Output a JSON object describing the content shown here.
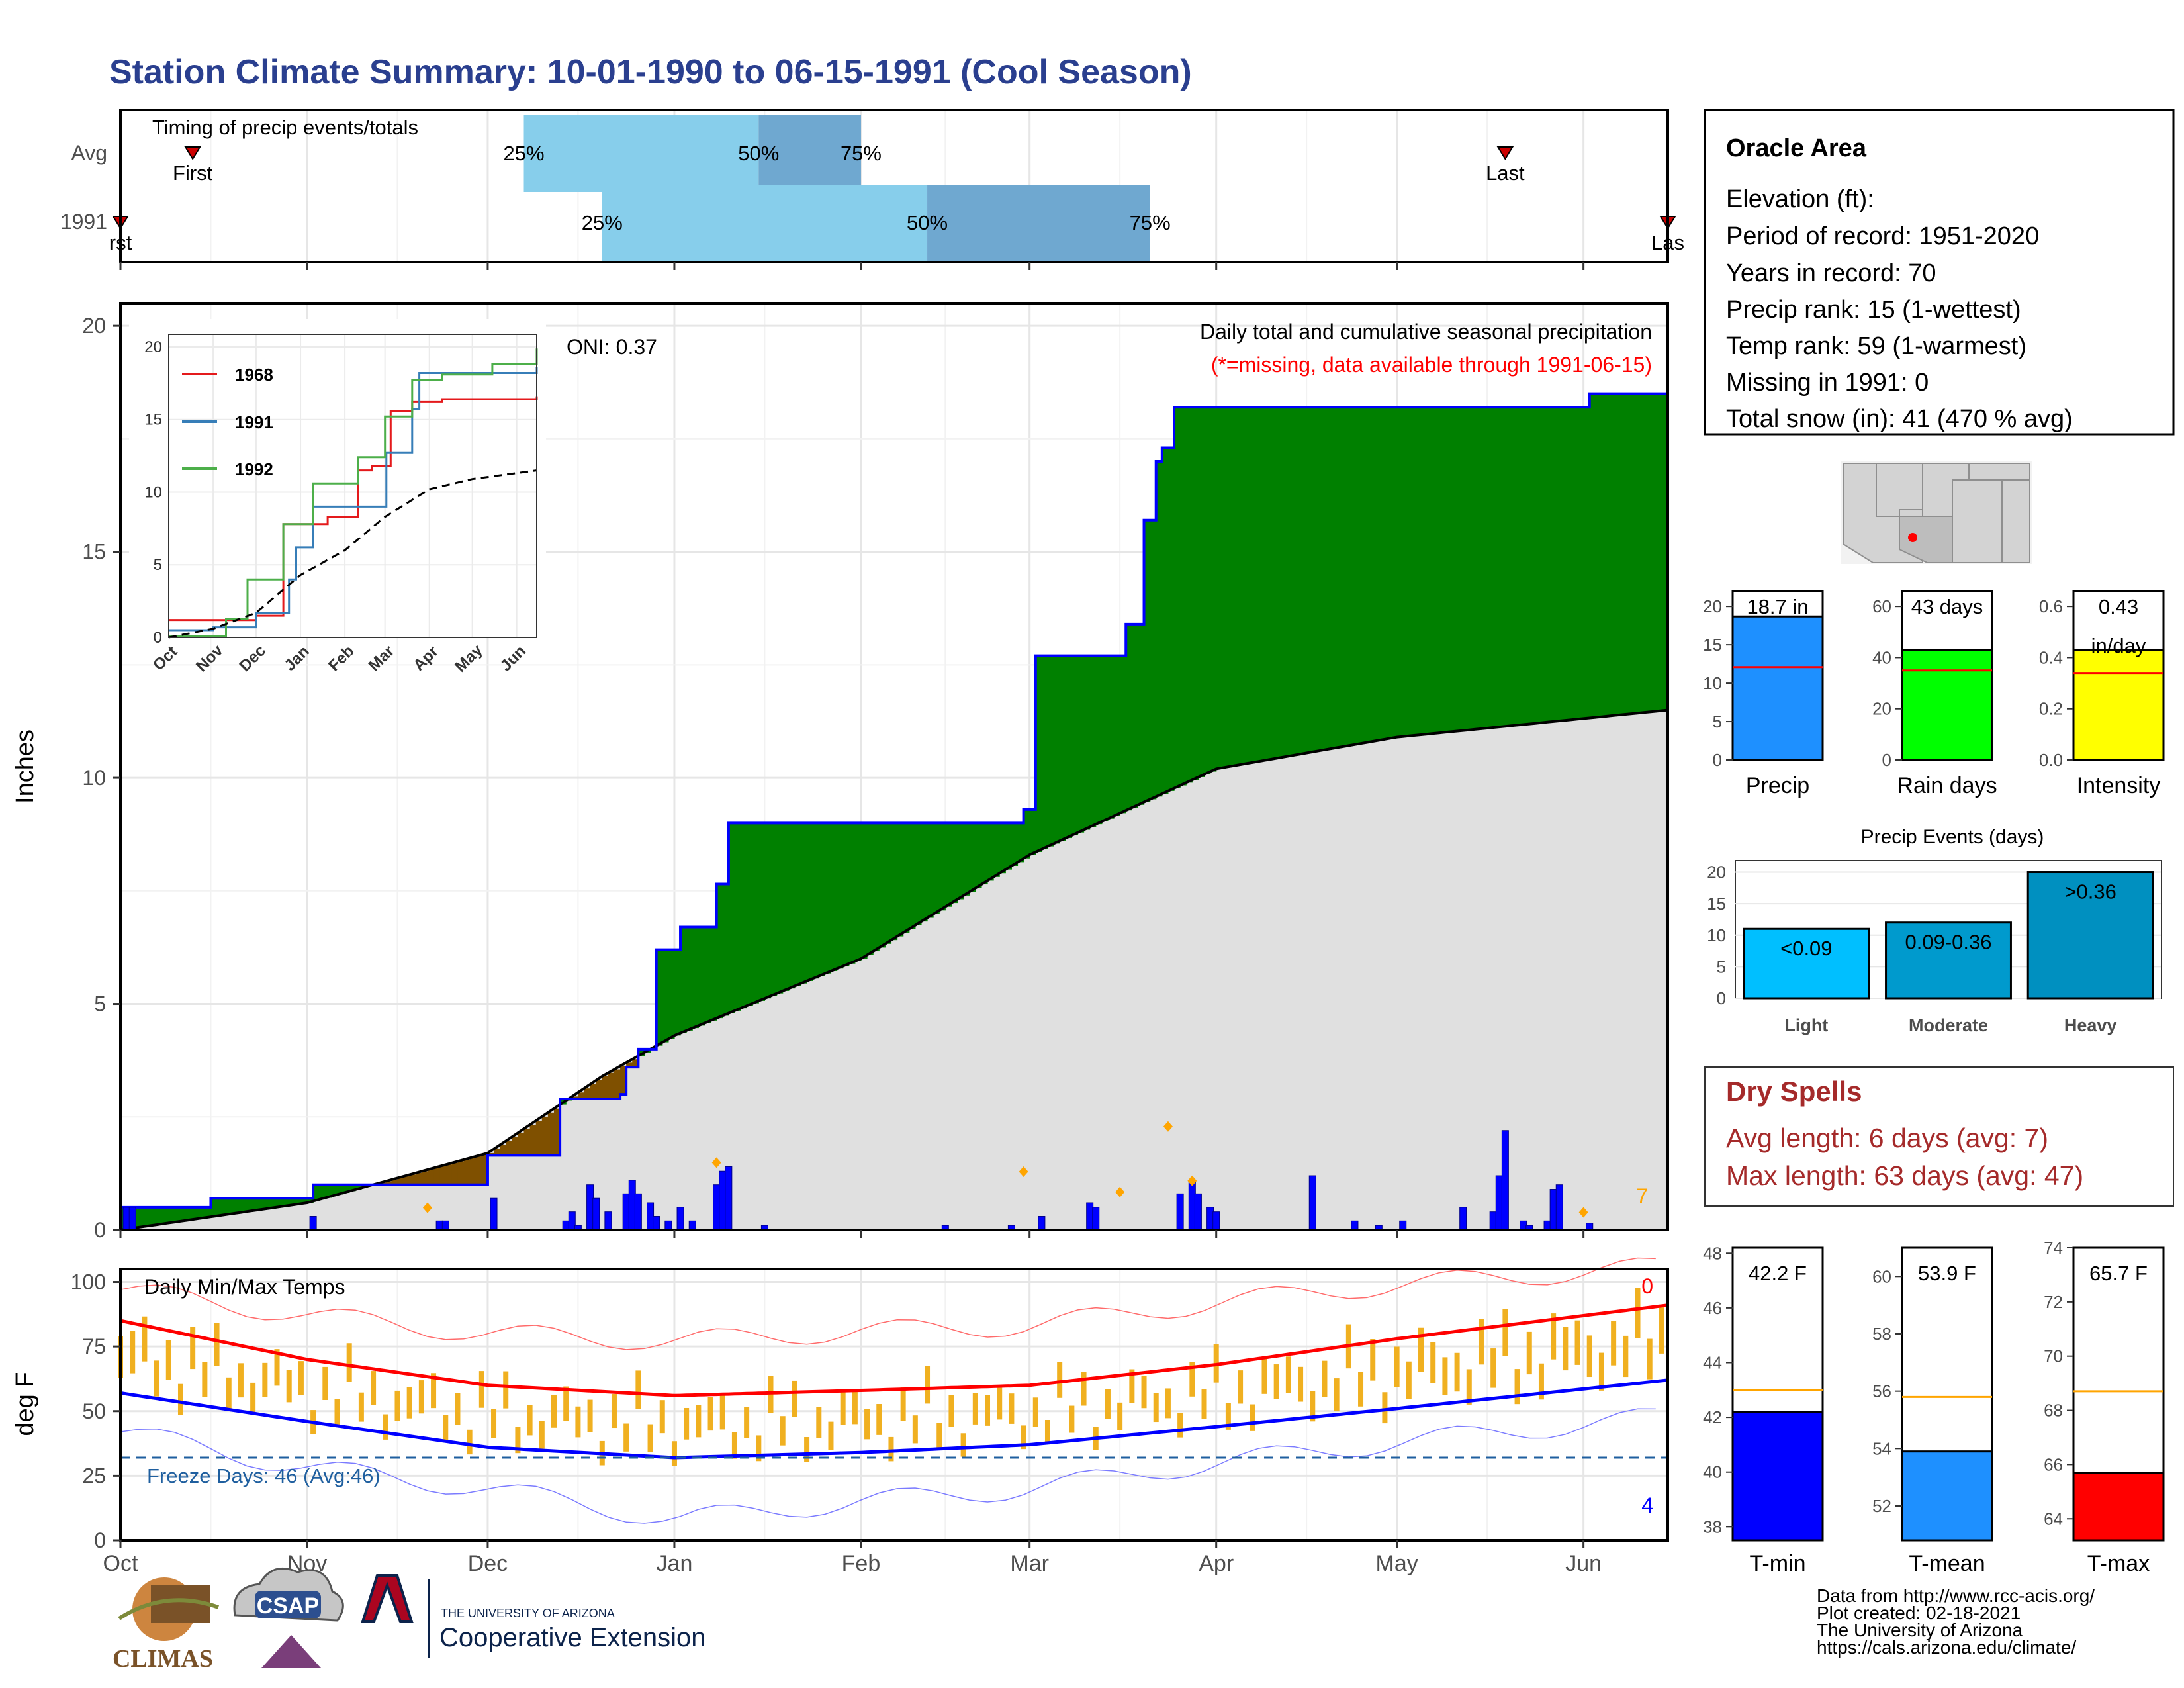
{
  "page_title": "Station Climate Summary: 10-01-1990 to 06-15-1991 (Cool Season)",
  "colors": {
    "title": "#2a3f8f",
    "wet_fill": "#008000",
    "dry_fill": "#7f5000",
    "avg_fill": "#e0e0e0",
    "cum_line": "#0000ff",
    "bar_light": "#87ceeb",
    "bar_dark": "#6fa8d0",
    "temp_bar": "#f0b020",
    "tmax_line": "#ff0000",
    "tmin_line": "#0000ff",
    "freeze_line": "#1f5f9f",
    "marker_orange": "#ffa500",
    "dry_spell_text": "#a52a2a"
  },
  "timing": {
    "title": "Timing of precip events/totals",
    "rows": [
      {
        "label": "Avg",
        "first": "1990-10-13",
        "last": "1991-05-19",
        "p25": "1990-12-07",
        "p50": "1991-01-15",
        "p75": "1991-02-01",
        "first_label": "First",
        "last_label": "Last",
        "p25_label": "25%",
        "p50_label": "50%",
        "p75_label": "75%"
      },
      {
        "label": "1991",
        "first": "1990-10-01",
        "last": "1991-06-15",
        "p25": "1990-12-20",
        "p50": "1991-02-12",
        "p75": "1991-03-21",
        "first_label": "rst",
        "last_label": "Las",
        "p25_label": "25%",
        "p50_label": "50%",
        "p75_label": "75%"
      }
    ]
  },
  "precip": {
    "y_label": "Inches",
    "y_ticks": [
      "0",
      "5",
      "10",
      "15",
      "20"
    ],
    "oni": "ONI: 0.37",
    "title": "Daily total and cumulative seasonal precipitation",
    "subtitle": "(*=missing, data available through 1991-06-15)",
    "corner_count": "7"
  },
  "inset": {
    "y_ticks": [
      "0",
      "5",
      "10",
      "15",
      "20"
    ],
    "x_ticks": [
      "Oct",
      "Nov",
      "Dec",
      "Jan",
      "Feb",
      "Mar",
      "Apr",
      "May",
      "Jun"
    ],
    "legend": [
      {
        "label": "1968",
        "color": "#e41a1c"
      },
      {
        "label": "1991",
        "color": "#377eb8"
      },
      {
        "label": "1992",
        "color": "#4daf4a"
      }
    ]
  },
  "temps": {
    "title": "Daily Min/Max Temps",
    "y_label": "deg F",
    "y_ticks": [
      "0",
      "25",
      "50",
      "75",
      "100"
    ],
    "freeze_label": "Freeze Days: 46 (Avg:46)",
    "top_count": "0",
    "bottom_count": "4"
  },
  "x_axis": {
    "ticks": [
      "Oct",
      "Nov",
      "Dec",
      "Jan",
      "Feb",
      "Mar",
      "Apr",
      "May",
      "Jun"
    ]
  },
  "station": {
    "name": "Oracle Area",
    "lines": [
      "Elevation (ft):",
      "Period of record: 1951-2020",
      "Years in record: 70",
      "Precip rank: 15 (1-wettest)",
      "Temp rank: 59 (1-warmest)",
      "Missing in 1991: 0",
      "Total snow (in): 41 (470 % avg)"
    ]
  },
  "mini_bars": [
    {
      "name": "Precip",
      "value_label": "18.7 in",
      "ticks": [
        "0",
        "5",
        "10",
        "15",
        "20"
      ]
    },
    {
      "name": "Rain days",
      "value_label": "43 days",
      "ticks": [
        "0",
        "20",
        "40",
        "60"
      ]
    },
    {
      "name": "Intensity",
      "value_label": "0.43",
      "value_unit": "in/day",
      "ticks": [
        "0.0",
        "0.2",
        "0.4",
        "0.6"
      ]
    }
  ],
  "precip_events": {
    "title": "Precip Events (days)",
    "ticks": [
      "0",
      "5",
      "10",
      "15",
      "20"
    ],
    "bars": [
      {
        "category": "Light",
        "label": "<0.09"
      },
      {
        "category": "Moderate",
        "label": "0.09-0.36"
      },
      {
        "category": "Heavy",
        "label": ">0.36"
      }
    ]
  },
  "dry_spells": {
    "title": "Dry Spells",
    "avg_length": "Avg length: 6 days (avg: 7)",
    "max_length": "Max length: 63 days (avg: 47)"
  },
  "temp_summary": [
    {
      "name": "T-min",
      "label": "42.2 F",
      "ticks": [
        "38",
        "40",
        "42",
        "44",
        "46",
        "48"
      ]
    },
    {
      "name": "T-mean",
      "label": "53.9 F",
      "ticks": [
        "52",
        "54",
        "56",
        "58",
        "60"
      ]
    },
    {
      "name": "T-max",
      "label": "65.7 F",
      "ticks": [
        "64",
        "66",
        "68",
        "70",
        "72",
        "74"
      ]
    }
  ],
  "footer": {
    "lines": [
      "Data from http://www.rcc-acis.org/",
      "Plot created: 02-18-2021",
      "The University of Arizona",
      "https://cals.arizona.edu/climate/"
    ],
    "climas": "CLIMAS",
    "csap": "CSAP",
    "ua_small": "THE UNIVERSITY OF ARIZONA",
    "ua_big": "Cooperative Extension"
  },
  "chart_data": [
    {
      "type": "area",
      "title": "Daily total and cumulative seasonal precipitation",
      "ylabel": "Inches",
      "ylim": [
        0,
        20.5
      ],
      "cumulative_1991": [
        [
          "1990-10-01",
          0.5
        ],
        [
          "1990-10-15",
          0.5
        ],
        [
          "1990-10-16",
          0.7
        ],
        [
          "1990-11-01",
          0.7
        ],
        [
          "1990-11-02",
          1.0
        ],
        [
          "1990-11-30",
          1.0
        ],
        [
          "1990-12-01",
          1.65
        ],
        [
          "1990-12-12",
          1.65
        ],
        [
          "1990-12-13",
          2.9
        ],
        [
          "1990-12-22",
          2.9
        ],
        [
          "1990-12-23",
          3.0
        ],
        [
          "1990-12-24",
          3.6
        ],
        [
          "1990-12-26",
          4.0
        ],
        [
          "1990-12-28",
          4.0
        ],
        [
          "1990-12-29",
          6.2
        ],
        [
          "1991-01-01",
          6.2
        ],
        [
          "1991-01-02",
          6.7
        ],
        [
          "1991-01-07",
          6.7
        ],
        [
          "1991-01-08",
          7.65
        ],
        [
          "1991-01-09",
          7.65
        ],
        [
          "1991-01-10",
          9.0
        ],
        [
          "1991-01-30",
          9.0
        ],
        [
          "1991-02-27",
          9.0
        ],
        [
          "1991-02-28",
          9.3
        ],
        [
          "1991-03-01",
          9.3
        ],
        [
          "1991-03-02",
          12.7
        ],
        [
          "1991-03-16",
          12.7
        ],
        [
          "1991-03-17",
          13.4
        ],
        [
          "1991-03-18",
          13.4
        ],
        [
          "1991-03-20",
          15.7
        ],
        [
          "1991-03-21",
          15.7
        ],
        [
          "1991-03-22",
          17.0
        ],
        [
          "1991-03-23",
          17.3
        ],
        [
          "1991-03-25",
          18.2
        ],
        [
          "1991-06-01",
          18.2
        ],
        [
          "1991-06-02",
          18.5
        ],
        [
          "1991-06-15",
          18.55
        ]
      ],
      "cumulative_avg": [
        [
          "1990-10-01",
          0.0
        ],
        [
          "1990-11-01",
          0.6
        ],
        [
          "1990-12-01",
          1.7
        ],
        [
          "1990-12-20",
          3.4
        ],
        [
          "1991-01-01",
          4.3
        ],
        [
          "1991-02-01",
          6.0
        ],
        [
          "1991-03-01",
          8.3
        ],
        [
          "1991-04-01",
          10.2
        ],
        [
          "1991-05-01",
          10.9
        ],
        [
          "1991-06-15",
          11.5
        ]
      ],
      "daily_bars": [
        [
          "1990-10-02",
          0.5
        ],
        [
          "1990-10-03",
          0.5
        ],
        [
          "1990-11-02",
          0.3
        ],
        [
          "1990-11-23",
          0.2
        ],
        [
          "1990-11-24",
          0.2
        ],
        [
          "1990-12-02",
          0.7
        ],
        [
          "1990-12-14",
          0.2
        ],
        [
          "1990-12-15",
          0.4
        ],
        [
          "1990-12-16",
          0.1
        ],
        [
          "1990-12-18",
          1.0
        ],
        [
          "1990-12-19",
          0.7
        ],
        [
          "1990-12-21",
          0.4
        ],
        [
          "1990-12-24",
          0.8
        ],
        [
          "1990-12-25",
          1.1
        ],
        [
          "1990-12-26",
          0.8
        ],
        [
          "1990-12-28",
          0.6
        ],
        [
          "1990-12-29",
          0.3
        ],
        [
          "1990-12-31",
          0.2
        ],
        [
          "1991-01-02",
          0.5
        ],
        [
          "1991-01-04",
          0.2
        ],
        [
          "1991-01-08",
          1.0
        ],
        [
          "1991-01-09",
          1.3
        ],
        [
          "1991-01-10",
          1.4
        ],
        [
          "1991-01-16",
          0.1
        ],
        [
          "1991-02-15",
          0.1
        ],
        [
          "1991-02-26",
          0.1
        ],
        [
          "1991-03-03",
          0.3
        ],
        [
          "1991-03-11",
          0.6
        ],
        [
          "1991-03-12",
          0.5
        ],
        [
          "1991-03-26",
          0.8
        ],
        [
          "1991-03-28",
          1.1
        ],
        [
          "1991-03-29",
          0.8
        ],
        [
          "1991-03-31",
          0.5
        ],
        [
          "1991-04-01",
          0.4
        ],
        [
          "1991-04-17",
          1.2
        ],
        [
          "1991-04-24",
          0.2
        ],
        [
          "1991-04-28",
          0.1
        ],
        [
          "1991-05-02",
          0.2
        ],
        [
          "1991-05-12",
          0.5
        ],
        [
          "1991-05-17",
          0.4
        ],
        [
          "1991-05-18",
          1.2
        ],
        [
          "1991-05-19",
          2.2
        ],
        [
          "1991-05-22",
          0.2
        ],
        [
          "1991-05-23",
          0.1
        ],
        [
          "1991-05-26",
          0.2
        ],
        [
          "1991-05-27",
          0.9
        ],
        [
          "1991-05-28",
          1.0
        ],
        [
          "1991-06-02",
          0.15
        ]
      ],
      "snow_markers": [
        [
          "1990-11-21",
          0.4
        ],
        [
          "1991-01-08",
          1.4
        ],
        [
          "1991-02-28",
          1.2
        ],
        [
          "1991-03-16",
          0.75
        ],
        [
          "1991-03-24",
          2.2
        ],
        [
          "1991-03-28",
          1.0
        ],
        [
          "1991-06-01",
          0.3
        ]
      ]
    },
    {
      "type": "line",
      "title": "inset cumulative comparison",
      "ylim": [
        0,
        20
      ],
      "series": [
        {
          "name": "1968",
          "points": [
            [
              "1990-10-01",
              1.2
            ],
            [
              "1990-12-01",
              1.5
            ],
            [
              "1990-12-20",
              7.8
            ],
            [
              "1991-01-20",
              8.3
            ],
            [
              "1991-02-10",
              11.5
            ],
            [
              "1991-02-20",
              11.8
            ],
            [
              "1991-03-05",
              15.6
            ],
            [
              "1991-03-20",
              16.2
            ],
            [
              "1991-04-10",
              16.4
            ],
            [
              "1991-06-15",
              16.6
            ]
          ]
        },
        {
          "name": "1991",
          "points": [
            [
              "1990-10-01",
              0.5
            ],
            [
              "1990-11-01",
              0.7
            ],
            [
              "1990-12-01",
              1.7
            ],
            [
              "1990-12-24",
              4.0
            ],
            [
              "1990-12-29",
              6.2
            ],
            [
              "1991-01-10",
              9.0
            ],
            [
              "1991-03-02",
              12.7
            ],
            [
              "1991-03-20",
              15.7
            ],
            [
              "1991-03-25",
              18.2
            ],
            [
              "1991-06-15",
              18.6
            ]
          ]
        },
        {
          "name": "1992",
          "points": [
            [
              "1990-10-01",
              0.1
            ],
            [
              "1990-11-10",
              1.3
            ],
            [
              "1990-11-25",
              4.0
            ],
            [
              "1990-12-20",
              7.8
            ],
            [
              "1991-01-10",
              10.6
            ],
            [
              "1991-02-10",
              12.4
            ],
            [
              "1991-03-01",
              15.2
            ],
            [
              "1991-03-20",
              17.7
            ],
            [
              "1991-04-10",
              18.1
            ],
            [
              "1991-05-15",
              18.8
            ],
            [
              "1991-06-15",
              19.9
            ]
          ]
        },
        {
          "name": "avg",
          "points": [
            [
              "1990-10-01",
              0.0
            ],
            [
              "1990-11-01",
              0.6
            ],
            [
              "1990-12-01",
              1.7
            ],
            [
              "1991-01-01",
              4.3
            ],
            [
              "1991-02-01",
              6.0
            ],
            [
              "1991-03-01",
              8.3
            ],
            [
              "1991-04-01",
              10.2
            ],
            [
              "1991-05-01",
              10.9
            ],
            [
              "1991-06-15",
              11.5
            ]
          ]
        }
      ]
    },
    {
      "type": "bar",
      "title": "Daily Min/Max Temps",
      "ylabel": "deg F",
      "ylim": [
        0,
        105
      ],
      "avg_tmax": [
        [
          "1990-10-01",
          85
        ],
        [
          "1990-11-01",
          70
        ],
        [
          "1990-12-01",
          60
        ],
        [
          "1991-01-01",
          56
        ],
        [
          "1991-02-01",
          58
        ],
        [
          "1991-03-01",
          60
        ],
        [
          "1991-04-01",
          68
        ],
        [
          "1991-05-01",
          78
        ],
        [
          "1991-06-15",
          91
        ]
      ],
      "avg_tmin": [
        [
          "1990-10-01",
          57
        ],
        [
          "1990-11-01",
          46
        ],
        [
          "1990-12-01",
          36
        ],
        [
          "1991-01-01",
          32
        ],
        [
          "1991-02-01",
          34
        ],
        [
          "1991-03-01",
          37
        ],
        [
          "1991-04-01",
          44
        ],
        [
          "1991-05-01",
          51
        ],
        [
          "1991-06-15",
          62
        ]
      ],
      "record_max": [
        [
          "1990-10-01",
          97
        ],
        [
          "1990-11-01",
          87
        ],
        [
          "1990-12-01",
          80
        ],
        [
          "1991-01-01",
          77
        ],
        [
          "1991-02-01",
          81
        ],
        [
          "1991-03-01",
          83
        ],
        [
          "1991-04-01",
          92
        ],
        [
          "1991-05-01",
          99
        ],
        [
          "1991-06-15",
          106
        ]
      ],
      "record_min": [
        [
          "1990-10-01",
          42
        ],
        [
          "1990-11-01",
          28
        ],
        [
          "1990-12-01",
          20
        ],
        [
          "1991-01-01",
          8
        ],
        [
          "1991-02-01",
          15
        ],
        [
          "1991-03-01",
          20
        ],
        [
          "1991-04-01",
          30
        ],
        [
          "1991-05-01",
          38
        ],
        [
          "1991-06-15",
          48
        ]
      ],
      "freeze_line": 32
    },
    {
      "type": "bar",
      "title": "Precip",
      "categories": [
        "Precip"
      ],
      "values": [
        18.7
      ],
      "avg": 12.1,
      "ylim": [
        0,
        22
      ]
    },
    {
      "type": "bar",
      "title": "Rain days",
      "categories": [
        "Rain days"
      ],
      "values": [
        43
      ],
      "avg": 35,
      "ylim": [
        0,
        66
      ]
    },
    {
      "type": "bar",
      "title": "Intensity",
      "categories": [
        "Intensity"
      ],
      "values": [
        0.43
      ],
      "avg": 0.34,
      "ylim": [
        0,
        0.66
      ]
    },
    {
      "type": "bar",
      "title": "Precip Events (days)",
      "categories": [
        "Light",
        "Moderate",
        "Heavy"
      ],
      "values": [
        11,
        12,
        20
      ],
      "ylim": [
        0,
        21
      ]
    },
    {
      "type": "bar",
      "title": "T-min",
      "categories": [
        "T-min"
      ],
      "values": [
        42.2
      ],
      "avg": 43.0,
      "ylim": [
        37.5,
        48.2
      ]
    },
    {
      "type": "bar",
      "title": "T-mean",
      "categories": [
        "T-mean"
      ],
      "values": [
        53.9
      ],
      "avg": 55.8,
      "ylim": [
        50.8,
        61.0
      ]
    },
    {
      "type": "bar",
      "title": "T-max",
      "categories": [
        "T-max"
      ],
      "values": [
        65.7
      ],
      "avg": 68.7,
      "ylim": [
        63.2,
        74.0
      ]
    }
  ]
}
